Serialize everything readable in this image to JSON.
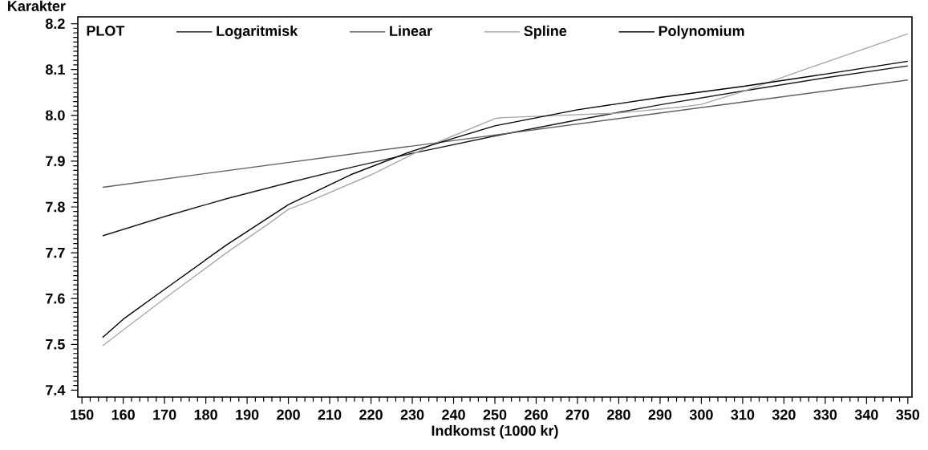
{
  "chart_data": {
    "type": "line",
    "xlabel": "Indkomst (1000 kr)",
    "ylabel": "Karakter",
    "legend_title": "PLOT",
    "legend": "top left",
    "marker": "none",
    "line_style": "solid",
    "xlim": [
      149,
      351
    ],
    "ylim": [
      7.385,
      8.215
    ],
    "xticks": [
      150,
      160,
      170,
      180,
      190,
      200,
      210,
      220,
      230,
      240,
      250,
      260,
      270,
      280,
      290,
      300,
      310,
      320,
      330,
      340,
      350
    ],
    "yticks": [
      7.4,
      7.5,
      7.6,
      7.7,
      7.8,
      7.9,
      {
        "value": 8.0,
        "label": "8.0"
      },
      8.1,
      8.2
    ],
    "series": [
      {
        "name": "Logaritmisk",
        "color": "#1a1a1a",
        "x": [
          155,
          170,
          185,
          200,
          215,
          230,
          250,
          270,
          290,
          310,
          330,
          350
        ],
        "values": [
          7.737,
          7.779,
          7.818,
          7.853,
          7.886,
          7.917,
          7.955,
          7.99,
          8.023,
          8.053,
          8.082,
          8.108
        ]
      },
      {
        "name": "Linear",
        "color": "#606060",
        "x": [
          155,
          350
        ],
        "values": [
          7.843,
          8.077
        ]
      },
      {
        "name": "Spline",
        "color": "#a8a8a8",
        "x": [
          155,
          170,
          185,
          195,
          200,
          205,
          220,
          235,
          250,
          252,
          280,
          295,
          300,
          310,
          325,
          350
        ],
        "values": [
          7.497,
          7.6,
          7.7,
          7.762,
          7.795,
          7.812,
          7.87,
          7.937,
          7.993,
          7.995,
          8.005,
          8.018,
          8.024,
          8.052,
          8.1,
          8.178
        ]
      },
      {
        "name": "Polynomium",
        "color": "#000000",
        "x": [
          155,
          160,
          170,
          185,
          200,
          215,
          230,
          240,
          250,
          270,
          290,
          310,
          330,
          350
        ],
        "values": [
          7.515,
          7.555,
          7.62,
          7.717,
          7.805,
          7.87,
          7.922,
          7.95,
          7.977,
          8.012,
          8.039,
          8.063,
          8.09,
          8.118
        ]
      }
    ]
  }
}
